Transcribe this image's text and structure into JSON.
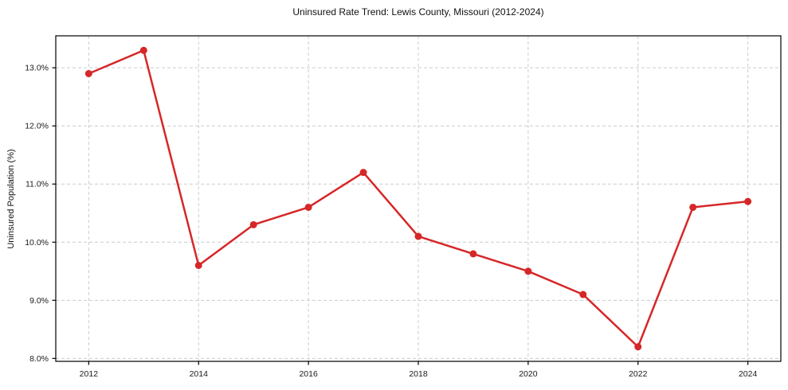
{
  "chart_data": {
    "type": "line",
    "title": "Uninsured Rate Trend: Lewis County, Missouri (2012-2024)",
    "xlabel": "",
    "ylabel": "Uninsured Population (%)",
    "x": [
      2012,
      2013,
      2014,
      2015,
      2016,
      2017,
      2018,
      2019,
      2020,
      2021,
      2022,
      2023,
      2024
    ],
    "values": [
      12.9,
      13.3,
      9.6,
      10.3,
      10.6,
      11.2,
      10.1,
      9.8,
      9.5,
      9.1,
      8.2,
      10.6,
      10.7
    ],
    "xticks": {
      "values": [
        2012,
        2014,
        2016,
        2018,
        2020,
        2022,
        2024
      ],
      "labels": [
        "2012",
        "2014",
        "2016",
        "2018",
        "2020",
        "2022",
        "2024"
      ]
    },
    "yticks": {
      "values": [
        8,
        9,
        10,
        11,
        12,
        13
      ],
      "labels": [
        "8.0%",
        "9.0%",
        "10.0%",
        "11.0%",
        "12.0%",
        "13.0%"
      ]
    },
    "xlim": [
      2011.4,
      2024.6
    ],
    "ylim": [
      7.95,
      13.55
    ],
    "grid": true,
    "grid_style": "dashed",
    "legend": false,
    "marker": "circle",
    "colors": {
      "line": "#d62728",
      "grid": "#cccccc",
      "spine": "#000000",
      "tick_text": "#1a1a1a",
      "background": "#ffffff"
    }
  }
}
